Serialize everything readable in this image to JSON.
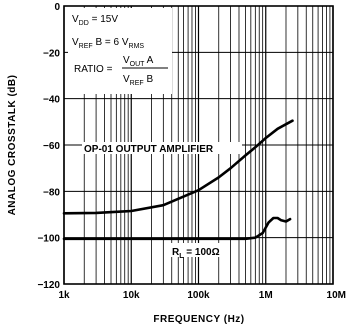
{
  "chart_data": {
    "type": "line",
    "title": "",
    "xlabel": "FREQUENCY (Hz)",
    "ylabel": "ANALOG CROSSTALK (dB)",
    "x_scale": "log",
    "xlim": [
      1000,
      10000000
    ],
    "ylim": [
      -120,
      0
    ],
    "x_ticks": [
      1000,
      10000,
      100000,
      1000000,
      10000000
    ],
    "x_tick_labels": [
      "1k",
      "10k",
      "100k",
      "1M",
      "10M"
    ],
    "y_ticks": [
      0,
      -20,
      -40,
      -60,
      -80,
      -100,
      -120
    ],
    "y_tick_labels": [
      "0",
      "−20",
      "−40",
      "−60",
      "−80",
      "−100",
      "−120"
    ],
    "grid": true,
    "series": [
      {
        "name": "",
        "label_text": "OP-01 OUTPUT AMPLIFIER",
        "color": "#000000",
        "x": [
          1000,
          3000,
          10000,
          30000,
          100000,
          200000,
          300000,
          500000,
          700000,
          1000000,
          1500000,
          2500000
        ],
        "y": [
          -89.5,
          -89.3,
          -88.5,
          -86,
          -79.5,
          -74,
          -70,
          -64.5,
          -61,
          -57,
          -53,
          -49.5
        ]
      },
      {
        "name": "",
        "label_text": "R_L = 100Ω",
        "color": "#000000",
        "x": [
          1000,
          10000,
          100000,
          300000,
          500000,
          700000,
          900000,
          1100000,
          1300000,
          1500000,
          1700000,
          2000000,
          2300000
        ],
        "y": [
          -100.5,
          -100.5,
          -100.5,
          -100.5,
          -100.5,
          -100,
          -98,
          -93.5,
          -91.5,
          -91.5,
          -92.5,
          -93,
          -92
        ]
      }
    ],
    "annotations": {
      "vdd": "V_DD = 15V",
      "vref": "V_REF B = 6 V_RMS",
      "ratio_label": "RATIO =",
      "ratio_numerator": "V_OUT A",
      "ratio_denominator": "V_REF B"
    }
  }
}
